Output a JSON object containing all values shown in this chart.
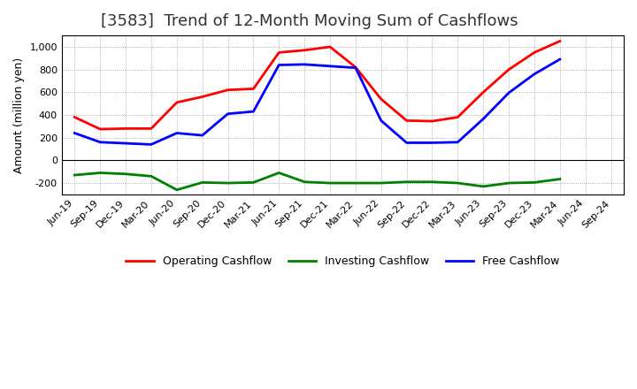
{
  "title": "[3583]  Trend of 12-Month Moving Sum of Cashflows",
  "ylabel": "Amount (million yen)",
  "x_labels": [
    "Jun-19",
    "Sep-19",
    "Dec-19",
    "Mar-20",
    "Jun-20",
    "Sep-20",
    "Dec-20",
    "Mar-21",
    "Jun-21",
    "Sep-21",
    "Dec-21",
    "Mar-22",
    "Jun-22",
    "Sep-22",
    "Dec-22",
    "Mar-23",
    "Jun-23",
    "Sep-23",
    "Dec-23",
    "Mar-24",
    "Jun-24",
    "Sep-24"
  ],
  "operating": [
    380,
    275,
    280,
    280,
    510,
    560,
    620,
    630,
    950,
    970,
    1000,
    820,
    540,
    350,
    345,
    380,
    600,
    800,
    950,
    1050,
    null,
    null
  ],
  "investing": [
    -130,
    -110,
    -120,
    -140,
    -260,
    -195,
    -200,
    -195,
    -110,
    -190,
    -200,
    -200,
    -200,
    -190,
    -190,
    -200,
    -230,
    -200,
    -195,
    -165,
    null,
    null
  ],
  "free": [
    240,
    160,
    150,
    140,
    240,
    220,
    410,
    430,
    840,
    845,
    830,
    815,
    350,
    155,
    155,
    160,
    365,
    595,
    760,
    890,
    null,
    null
  ],
  "line_colors": {
    "operating": "#ff0000",
    "investing": "#008000",
    "free": "#0000ff"
  },
  "line_width": 2.0,
  "ylim": [
    -300,
    1100
  ],
  "yticks": [
    -200,
    0,
    200,
    400,
    600,
    800,
    1000
  ],
  "background_color": "#ffffff",
  "plot_bg_color": "#ffffff",
  "grid_color": "#999999",
  "title_fontsize": 13,
  "axis_fontsize": 9,
  "tick_fontsize": 8,
  "legend_labels": [
    "Operating Cashflow",
    "Investing Cashflow",
    "Free Cashflow"
  ]
}
